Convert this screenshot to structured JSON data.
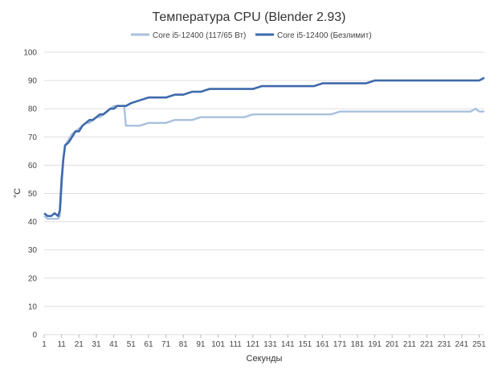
{
  "chart_data": {
    "type": "line",
    "title": "Температура CPU (Blender 2.93)",
    "xlabel": "Секунды",
    "ylabel": "°C",
    "ylim": [
      0,
      100
    ],
    "yticks": [
      0,
      10,
      20,
      30,
      40,
      50,
      60,
      70,
      80,
      90,
      100
    ],
    "xlim": [
      1,
      254
    ],
    "xticks": [
      1,
      11,
      21,
      31,
      41,
      51,
      61,
      71,
      81,
      91,
      101,
      111,
      121,
      131,
      141,
      151,
      161,
      171,
      181,
      191,
      201,
      211,
      221,
      231,
      241,
      251
    ],
    "grid": "horizontal",
    "legend_position": "top",
    "series": [
      {
        "name": "Core i5-12400 (117/65 Вт)",
        "color": "#a9c1de",
        "x": [
          1,
          3,
          5,
          7,
          9,
          10,
          11,
          12,
          13,
          15,
          17,
          19,
          21,
          23,
          25,
          27,
          29,
          31,
          33,
          35,
          37,
          39,
          41,
          43,
          45,
          47,
          48,
          51,
          56,
          61,
          66,
          71,
          76,
          81,
          86,
          91,
          96,
          101,
          106,
          111,
          116,
          121,
          126,
          131,
          136,
          141,
          146,
          151,
          156,
          161,
          166,
          171,
          176,
          181,
          186,
          191,
          196,
          201,
          206,
          211,
          216,
          221,
          226,
          231,
          236,
          241,
          246,
          249,
          251,
          254
        ],
        "values": [
          42,
          41,
          41,
          41,
          41,
          42,
          52,
          62,
          67,
          69,
          71,
          72,
          73,
          74,
          75,
          75,
          76,
          77,
          77,
          78,
          79,
          80,
          81,
          81,
          81,
          81,
          74,
          74,
          74,
          75,
          75,
          75,
          76,
          76,
          76,
          77,
          77,
          77,
          77,
          77,
          77,
          78,
          78,
          78,
          78,
          78,
          78,
          78,
          78,
          78,
          78,
          79,
          79,
          79,
          79,
          79,
          79,
          79,
          79,
          79,
          79,
          79,
          79,
          79,
          79,
          79,
          79,
          80,
          79,
          79
        ]
      },
      {
        "name": "Core i5-12400 (Безлимит)",
        "color": "#3f6aab",
        "x": [
          1,
          3,
          5,
          7,
          9,
          10,
          11,
          12,
          13,
          15,
          17,
          19,
          21,
          23,
          25,
          27,
          29,
          31,
          33,
          35,
          37,
          39,
          41,
          43,
          45,
          47,
          48,
          51,
          56,
          61,
          66,
          71,
          76,
          81,
          86,
          91,
          96,
          101,
          106,
          111,
          116,
          121,
          126,
          131,
          136,
          141,
          146,
          151,
          156,
          161,
          166,
          171,
          176,
          181,
          186,
          191,
          196,
          201,
          206,
          211,
          216,
          221,
          226,
          231,
          236,
          241,
          246,
          249,
          251,
          254
        ],
        "values": [
          43,
          42,
          42,
          43,
          42,
          44,
          55,
          62,
          67,
          68,
          70,
          72,
          72,
          74,
          75,
          76,
          76,
          77,
          78,
          78,
          79,
          80,
          80,
          81,
          81,
          81,
          81,
          82,
          83,
          84,
          84,
          84,
          85,
          85,
          86,
          86,
          87,
          87,
          87,
          87,
          87,
          87,
          88,
          88,
          88,
          88,
          88,
          88,
          88,
          89,
          89,
          89,
          89,
          89,
          89,
          90,
          90,
          90,
          90,
          90,
          90,
          90,
          90,
          90,
          90,
          90,
          90,
          90,
          90,
          91
        ]
      }
    ]
  }
}
